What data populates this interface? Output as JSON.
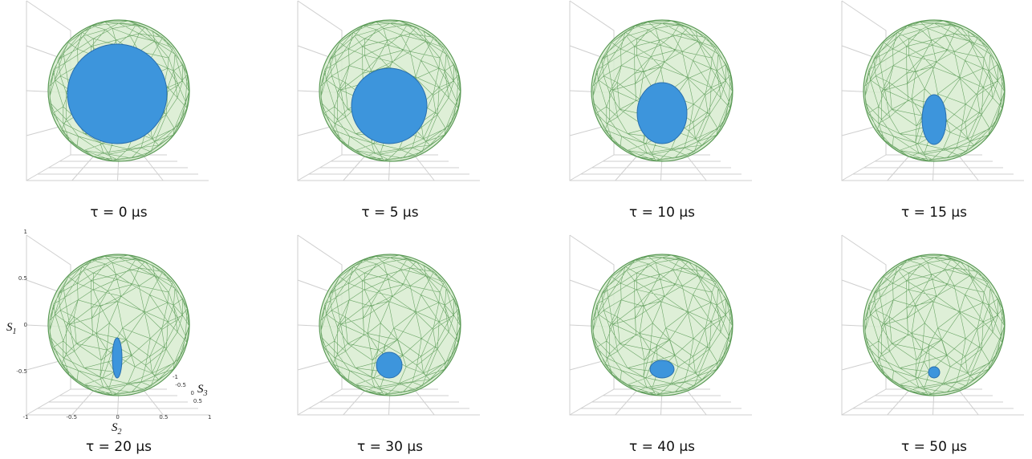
{
  "panels": [
    {
      "label": "τ = 0 μs"
    },
    {
      "label": "τ = 5 μs"
    },
    {
      "label": "τ = 10 μs"
    },
    {
      "label": "τ = 15 μs"
    },
    {
      "label": "τ = 20 μs"
    },
    {
      "label": "τ = 30 μs"
    },
    {
      "label": "τ = 40 μs"
    },
    {
      "label": "τ = 50 μs"
    }
  ],
  "axes": {
    "s1": {
      "symbol": "S",
      "subscript": "1",
      "ticks": [
        "1",
        "0.5",
        "0",
        "-0.5"
      ]
    },
    "s2": {
      "symbol": "S",
      "subscript": "2",
      "ticks": [
        "-1",
        "-0.5",
        "0",
        "0.5",
        "1"
      ]
    },
    "s3": {
      "symbol": "S",
      "subscript": "3",
      "ticks": [
        "-1",
        "-0.5",
        "0",
        "0.5"
      ]
    }
  }
}
